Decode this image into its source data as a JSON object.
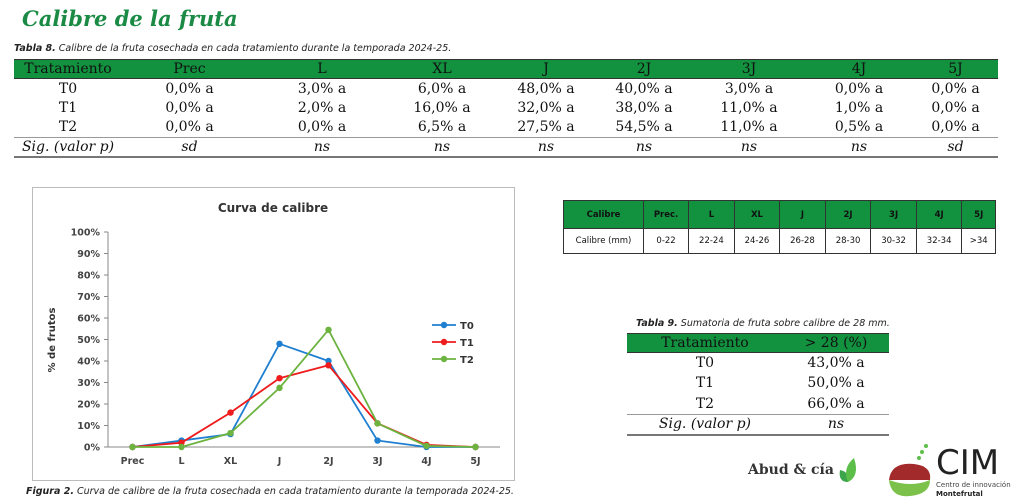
{
  "title": "Calibre de la fruta",
  "table8": {
    "caption_label": "Tabla 8.",
    "caption": " Calibre de la fruta cosechada en cada tratamiento durante la temporada 2024-25.",
    "headers": [
      "Tratamiento",
      "Prec",
      "L",
      "XL",
      "J",
      "2J",
      "3J",
      "4J",
      "5J"
    ],
    "rows": [
      [
        "T0",
        "0,0% a",
        "3,0% a",
        "6,0% a",
        "48,0% a",
        "40,0% a",
        "3,0% a",
        "0,0% a",
        "0,0% a"
      ],
      [
        "T1",
        "0,0% a",
        "2,0% a",
        "16,0% a",
        "32,0% a",
        "38,0% a",
        "11,0% a",
        "1,0% a",
        "0,0% a"
      ],
      [
        "T2",
        "0,0% a",
        "0,0% a",
        "6,5% a",
        "27,5% a",
        "54,5% a",
        "11,0% a",
        "0,5% a",
        "0,0% a"
      ],
      [
        "Sig. (valor p)",
        "sd",
        "ns",
        "ns",
        "ns",
        "ns",
        "ns",
        "ns",
        "sd"
      ]
    ]
  },
  "calibre_table": {
    "headers": [
      "Calibre",
      "Prec.",
      "L",
      "XL",
      "J",
      "2J",
      "3J",
      "4J",
      "5J"
    ],
    "row": [
      "Calibre (mm)",
      "0-22",
      "22-24",
      "24-26",
      "26-28",
      "28-30",
      "30-32",
      "32-34",
      ">34"
    ]
  },
  "table9": {
    "caption_label": "Tabla 9.",
    "caption": " Sumatoria de fruta sobre calibre de 28 mm.",
    "headers": [
      "Tratamiento",
      "> 28 (%)"
    ],
    "rows": [
      [
        "T0",
        "43,0% a"
      ],
      [
        "T1",
        "50,0% a"
      ],
      [
        "T2",
        "66,0% a"
      ],
      [
        "Sig. (valor p)",
        "ns"
      ]
    ]
  },
  "figure_caption_label": "Figura 2.",
  "figure_caption": " Curva de calibre de la fruta cosechada en cada tratamiento durante la temporada 2024-25.",
  "logos": {
    "abud": "Abud & cía",
    "cim": "CIM",
    "cim_sub1": "Centro de innovación",
    "cim_sub2": "Montefrutal"
  },
  "chart_data": {
    "type": "line",
    "title": "Curva de calibre",
    "xlabel": "",
    "ylabel": "% de frutos",
    "categories": [
      "Prec",
      "L",
      "XL",
      "J",
      "2J",
      "3J",
      "4J",
      "5J"
    ],
    "yticks": [
      "0%",
      "10%",
      "20%",
      "30%",
      "40%",
      "50%",
      "60%",
      "70%",
      "80%",
      "90%",
      "100%"
    ],
    "ylim": [
      0,
      100
    ],
    "legend": "right",
    "series": [
      {
        "name": "T0",
        "color": "#1f7fd0",
        "values": [
          0,
          3,
          6,
          48,
          40,
          3,
          0,
          0
        ]
      },
      {
        "name": "T1",
        "color": "#ee1c1c",
        "values": [
          0,
          2,
          16,
          32,
          38,
          11,
          1,
          0
        ]
      },
      {
        "name": "T2",
        "color": "#6cb33f",
        "values": [
          0,
          0,
          6.5,
          27.5,
          54.5,
          11,
          0.5,
          0
        ]
      }
    ]
  }
}
